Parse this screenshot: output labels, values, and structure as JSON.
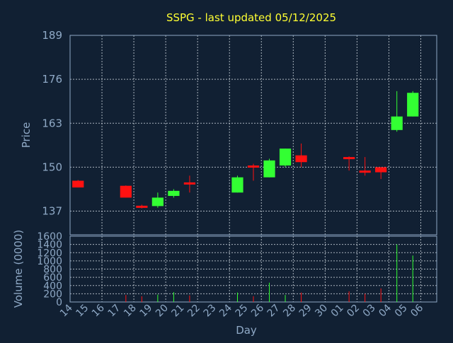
{
  "chart_title": "SSPG - last updated 05/12/2025",
  "chart_data": {
    "type": "candlestick",
    "title": "SSPG - last updated 05/12/2025",
    "xlabel": "Day",
    "ylabel": "Price",
    "volume_label": "Volume (0000)",
    "price_ylim": [
      130,
      189
    ],
    "price_ticks": [
      "137",
      "150",
      "163",
      "176",
      "189"
    ],
    "volume_ylim": [
      0,
      1600
    ],
    "volume_ticks": [
      "0",
      "200",
      "400",
      "600",
      "800",
      "1000",
      "1200",
      "1400",
      "1600"
    ],
    "day_labels": [
      "14",
      "15",
      "16",
      "17",
      "18",
      "19",
      "20",
      "21",
      "22",
      "23",
      "24",
      "25",
      "26",
      "27",
      "28",
      "29",
      "30",
      "01",
      "02",
      "03",
      "04",
      "05",
      "06"
    ],
    "grid": true,
    "up_color": "#33ff33",
    "down_color": "#ff1111",
    "candles": [
      {
        "day": "14",
        "open": 146,
        "high": 146.2,
        "low": 144,
        "close": 144,
        "volume": 0
      },
      {
        "day": "17",
        "open": 144.5,
        "high": 144.6,
        "low": 141,
        "close": 141,
        "volume": 170
      },
      {
        "day": "18",
        "open": 138.6,
        "high": 138.9,
        "low": 137.8,
        "close": 138.2,
        "volume": 140
      },
      {
        "day": "19",
        "open": 138.5,
        "high": 142.5,
        "low": 138,
        "close": 141,
        "volume": 180
      },
      {
        "day": "20",
        "open": 141.5,
        "high": 143.5,
        "low": 141,
        "close": 143,
        "volume": 240
      },
      {
        "day": "21",
        "open": 145.5,
        "high": 147.5,
        "low": 142.5,
        "close": 145,
        "volume": 160
      },
      {
        "day": "24",
        "open": 142.5,
        "high": 147.5,
        "low": 142.5,
        "close": 147,
        "volume": 230
      },
      {
        "day": "25",
        "open": 150.5,
        "high": 151,
        "low": 146,
        "close": 150,
        "volume": 140
      },
      {
        "day": "26",
        "open": 147,
        "high": 152.5,
        "low": 147,
        "close": 152,
        "volume": 470
      },
      {
        "day": "27",
        "open": 150.5,
        "high": 155.5,
        "low": 150,
        "close": 155.5,
        "volume": 170
      },
      {
        "day": "28",
        "open": 153.5,
        "high": 157,
        "low": 150,
        "close": 151.5,
        "volume": 230
      },
      {
        "day": "01",
        "open": 153,
        "high": 153.2,
        "low": 149,
        "close": 152.5,
        "volume": 260
      },
      {
        "day": "02",
        "open": 149,
        "high": 153,
        "low": 147.5,
        "close": 148.5,
        "volume": 200
      },
      {
        "day": "03",
        "open": 150,
        "high": 150,
        "low": 146.5,
        "close": 148.5,
        "volume": 330
      },
      {
        "day": "04",
        "open": 161,
        "high": 172.5,
        "low": 160.5,
        "close": 165,
        "volume": 1400
      },
      {
        "day": "05",
        "open": 165,
        "high": 172.5,
        "low": 165,
        "close": 172,
        "volume": 1130
      }
    ]
  }
}
